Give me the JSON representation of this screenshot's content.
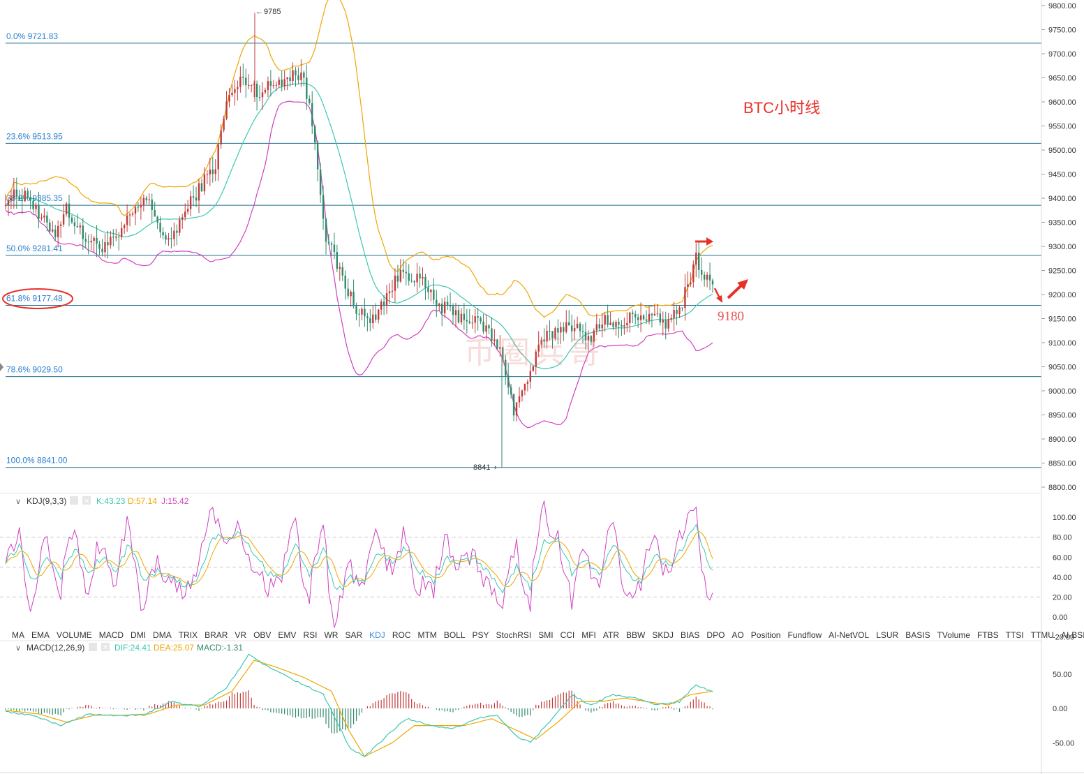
{
  "annotations": {
    "title": "BTC小时线",
    "target": "9180",
    "high_label": "9785",
    "low_label": "8841",
    "watermark": "币圈兵哥"
  },
  "colors": {
    "grid_line": "#1f6f8b",
    "candle_up": "#c23a3a",
    "candle_down": "#2f8a6a",
    "boll_upper": "#f0a500",
    "boll_mid": "#3cc8b0",
    "boll_lower": "#d040c0",
    "k_line": "#3cc8b0",
    "d_line": "#f0a500",
    "j_line": "#d040c0",
    "dif_line": "#3cc8b0",
    "dea_line": "#f0a500",
    "accent_red": "#e8302a",
    "tab_active": "#3a8fe0"
  },
  "indicator_tabs": [
    "MA",
    "EMA",
    "VOLUME",
    "MACD",
    "DMI",
    "DMA",
    "TRIX",
    "BRAR",
    "VR",
    "OBV",
    "EMV",
    "RSI",
    "WR",
    "SAR",
    "KDJ",
    "ROC",
    "MTM",
    "BOLL",
    "PSY",
    "StochRSI",
    "SMI",
    "CCI",
    "MFI",
    "ATR",
    "BBW",
    "SKDJ",
    "BIAS",
    "DPO",
    "AO",
    "Position",
    "Fundflow",
    "AI-NetVOL",
    "LSUR",
    "BASIS",
    "TVolume",
    "FTBS",
    "TTSI",
    "TTMU",
    "AI-BSI",
    "MLR",
    "AI-PD",
    "AI-FDI"
  ],
  "active_tab": "KDJ",
  "kdj": {
    "name": "KDJ(9,3,3)",
    "k": "K:43.23",
    "d": "D:57.14",
    "j": "J:15.42",
    "yticks": [
      "100.00",
      "80.00",
      "60.00",
      "40.00",
      "20.00",
      "0.00",
      "-20.00"
    ]
  },
  "macd": {
    "name": "MACD(12,26,9)",
    "dif": "DIF:24.41",
    "dea": "DEA:25.07",
    "macd": "MACD:-1.31",
    "yticks": [
      "50.00",
      "0.00",
      "-50.00"
    ]
  },
  "chart_data": {
    "type": "candlestick",
    "title": "BTC小时线",
    "ylim": [
      8800,
      9800
    ],
    "price_ticks": [
      9800,
      9750,
      9700,
      9650,
      9600,
      9550,
      9500,
      9450,
      9400,
      9350,
      9300,
      9250,
      9200,
      9150,
      9100,
      9050,
      9000,
      8950,
      8900,
      8850,
      8800
    ],
    "fib_levels": [
      {
        "label": "0.0% 9721.83",
        "price": 9721.83
      },
      {
        "label": "23.6% 9513.95",
        "price": 9513.95
      },
      {
        "label": "38.2% 9385.35",
        "price": 9385.35
      },
      {
        "label": "50.0% 9281.41",
        "price": 9281.41
      },
      {
        "label": "61.8% 9177.48",
        "price": 9177.48
      },
      {
        "label": "78.6% 9029.50",
        "price": 9029.5
      },
      {
        "label": "100.0% 8841.00",
        "price": 8841.0
      }
    ],
    "close_anchors": [
      [
        0,
        9400
      ],
      [
        8,
        9410
      ],
      [
        12,
        9360
      ],
      [
        18,
        9330
      ],
      [
        22,
        9380
      ],
      [
        28,
        9320
      ],
      [
        34,
        9300
      ],
      [
        40,
        9310
      ],
      [
        46,
        9370
      ],
      [
        52,
        9400
      ],
      [
        58,
        9300
      ],
      [
        64,
        9360
      ],
      [
        70,
        9420
      ],
      [
        76,
        9470
      ],
      [
        80,
        9600
      ],
      [
        86,
        9650
      ],
      [
        92,
        9620
      ],
      [
        98,
        9640
      ],
      [
        104,
        9660
      ],
      [
        108,
        9650
      ],
      [
        112,
        9520
      ],
      [
        116,
        9320
      ],
      [
        120,
        9260
      ],
      [
        126,
        9180
      ],
      [
        132,
        9140
      ],
      [
        138,
        9200
      ],
      [
        144,
        9250
      ],
      [
        150,
        9230
      ],
      [
        156,
        9180
      ],
      [
        162,
        9160
      ],
      [
        168,
        9150
      ],
      [
        174,
        9130
      ],
      [
        180,
        9070
      ],
      [
        184,
        8960
      ],
      [
        188,
        9010
      ],
      [
        194,
        9100
      ],
      [
        200,
        9130
      ],
      [
        206,
        9140
      ],
      [
        210,
        9100
      ],
      [
        216,
        9150
      ],
      [
        222,
        9130
      ],
      [
        228,
        9160
      ],
      [
        234,
        9150
      ],
      [
        240,
        9140
      ],
      [
        244,
        9170
      ],
      [
        247,
        9220
      ],
      [
        250,
        9280
      ],
      [
        253,
        9230
      ],
      [
        256,
        9230
      ]
    ],
    "kdj_k_anchors": [
      [
        0,
        55
      ],
      [
        5,
        70
      ],
      [
        10,
        35
      ],
      [
        15,
        60
      ],
      [
        20,
        40
      ],
      [
        25,
        70
      ],
      [
        30,
        45
      ],
      [
        35,
        60
      ],
      [
        40,
        45
      ],
      [
        45,
        75
      ],
      [
        50,
        35
      ],
      [
        55,
        45
      ],
      [
        60,
        40
      ],
      [
        65,
        30
      ],
      [
        70,
        40
      ],
      [
        75,
        80
      ],
      [
        80,
        80
      ],
      [
        85,
        85
      ],
      [
        90,
        65
      ],
      [
        95,
        45
      ],
      [
        100,
        40
      ],
      [
        105,
        75
      ],
      [
        110,
        40
      ],
      [
        115,
        70
      ],
      [
        120,
        25
      ],
      [
        125,
        40
      ],
      [
        130,
        35
      ],
      [
        135,
        65
      ],
      [
        140,
        55
      ],
      [
        145,
        70
      ],
      [
        150,
        45
      ],
      [
        155,
        35
      ],
      [
        160,
        60
      ],
      [
        165,
        55
      ],
      [
        170,
        60
      ],
      [
        175,
        45
      ],
      [
        180,
        25
      ],
      [
        185,
        50
      ],
      [
        190,
        30
      ],
      [
        195,
        75
      ],
      [
        200,
        80
      ],
      [
        205,
        45
      ],
      [
        210,
        60
      ],
      [
        215,
        40
      ],
      [
        220,
        75
      ],
      [
        225,
        45
      ],
      [
        230,
        35
      ],
      [
        235,
        65
      ],
      [
        240,
        50
      ],
      [
        245,
        70
      ],
      [
        250,
        90
      ],
      [
        256,
        43
      ]
    ],
    "macd_dif_anchors": [
      [
        0,
        -5
      ],
      [
        10,
        -10
      ],
      [
        20,
        -25
      ],
      [
        30,
        -8
      ],
      [
        40,
        -10
      ],
      [
        50,
        -10
      ],
      [
        60,
        10
      ],
      [
        70,
        2
      ],
      [
        80,
        30
      ],
      [
        88,
        78
      ],
      [
        95,
        60
      ],
      [
        105,
        40
      ],
      [
        115,
        20
      ],
      [
        120,
        -20
      ],
      [
        125,
        -60
      ],
      [
        130,
        -70
      ],
      [
        138,
        -40
      ],
      [
        145,
        -15
      ],
      [
        155,
        -25
      ],
      [
        162,
        -30
      ],
      [
        170,
        -15
      ],
      [
        178,
        -10
      ],
      [
        185,
        -40
      ],
      [
        190,
        -50
      ],
      [
        198,
        -15
      ],
      [
        205,
        20
      ],
      [
        212,
        5
      ],
      [
        220,
        20
      ],
      [
        228,
        15
      ],
      [
        236,
        5
      ],
      [
        244,
        10
      ],
      [
        250,
        35
      ],
      [
        256,
        24
      ]
    ],
    "macd_dea_anchors": [
      [
        0,
        -3
      ],
      [
        12,
        -8
      ],
      [
        22,
        -20
      ],
      [
        32,
        -10
      ],
      [
        42,
        -10
      ],
      [
        52,
        -8
      ],
      [
        62,
        5
      ],
      [
        72,
        5
      ],
      [
        82,
        25
      ],
      [
        90,
        70
      ],
      [
        98,
        60
      ],
      [
        108,
        45
      ],
      [
        118,
        25
      ],
      [
        124,
        -30
      ],
      [
        130,
        -70
      ],
      [
        140,
        -50
      ],
      [
        148,
        -25
      ],
      [
        158,
        -25
      ],
      [
        166,
        -25
      ],
      [
        176,
        -15
      ],
      [
        184,
        -30
      ],
      [
        192,
        -45
      ],
      [
        200,
        -20
      ],
      [
        208,
        10
      ],
      [
        216,
        10
      ],
      [
        224,
        15
      ],
      [
        232,
        10
      ],
      [
        240,
        5
      ],
      [
        248,
        20
      ],
      [
        256,
        25
      ]
    ]
  }
}
